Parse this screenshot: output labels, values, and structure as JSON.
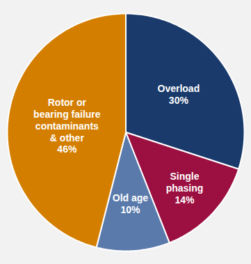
{
  "chart_data": {
    "type": "pie",
    "categories": [
      "Overload",
      "Single\nphasing",
      "Old age",
      "Rotor or\nbearing failure\ncontaminants\n& other"
    ],
    "values": [
      30,
      14,
      10,
      46
    ],
    "value_labels": [
      "30%",
      "14%",
      "10%",
      "46%"
    ],
    "colors": [
      "#1a3a6b",
      "#9b1040",
      "#5a7aab",
      "#d47e00"
    ],
    "data_labels": true
  }
}
